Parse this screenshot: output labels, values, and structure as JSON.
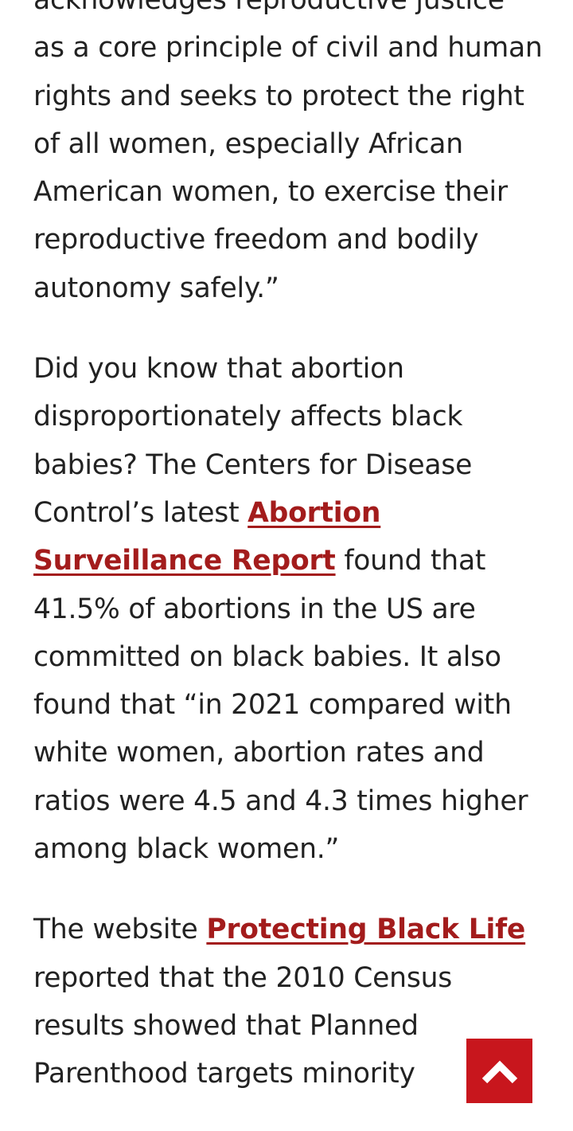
{
  "article": {
    "p1": {
      "text": "acknowledges reproductive justice as a core principle of civil and human rights and seeks to protect the right of all women, especially African American women, to exercise their reproductive freedom and bodily autonomy safely.”"
    },
    "p2": {
      "before_link": "Did you know that abortion disproportionately affects black babies? The Centers for Disease Control’s latest ",
      "link_text": "Abortion Surveillance Report",
      "after_link": " found that 41.5% of abortions in the US are committed on black babies. It also found that “in 2021 compared with white women, abortion rates and ratios were 4.5 and 4.3 times higher among black women.”"
    },
    "p3": {
      "before_link": "The website ",
      "link_text": "Protecting Black Life",
      "after_link": " reported that the 2010 Census results showed that Planned Parenthood targets minority"
    }
  },
  "scroll_top_button": {
    "icon": "chevron-up-icon",
    "color": "#c8161d"
  },
  "colors": {
    "text": "#222222",
    "link": "#a31c1c",
    "background": "#ffffff"
  }
}
